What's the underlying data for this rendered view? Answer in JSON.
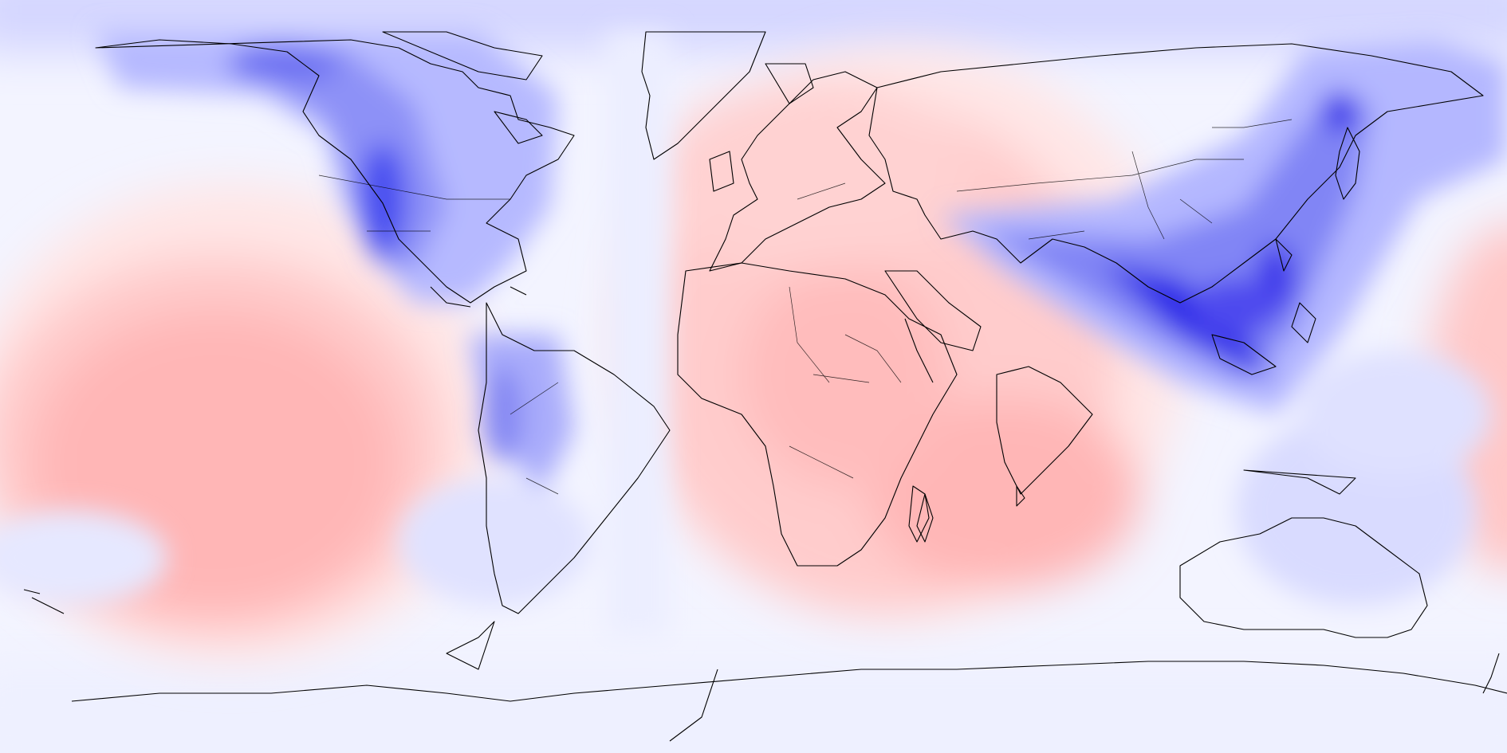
{
  "map": {
    "projection": "equirectangular",
    "lon_range": [
      -180,
      180
    ],
    "lat_range": [
      -90,
      90
    ],
    "color_scale": {
      "strong_negative": "#1a14e6",
      "negative": "#6b6ef0",
      "weak_negative": "#c9ccff",
      "neutral": "#f3f4ff",
      "weak_positive": "#ffd6d6",
      "positive": "#ffb4b4",
      "strong_positive": "#ff9c9c"
    },
    "coastline_color": "#000000",
    "labels": []
  }
}
